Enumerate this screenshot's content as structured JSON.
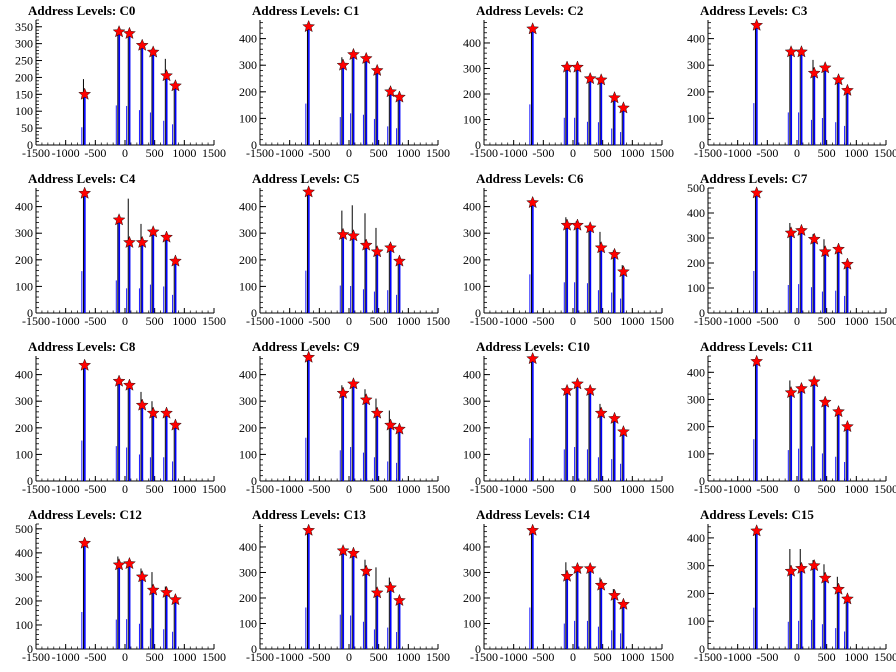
{
  "figure": {
    "rows": 4,
    "cols": 4,
    "colors": {
      "histogram_black": "#000000",
      "histogram_blue": "#0000ff",
      "marker_fill": "#ff0000",
      "marker_stroke": "#000000",
      "background": "#ffffff"
    },
    "marker_icon": "red-star-marker"
  },
  "chart_data": [
    {
      "type": "bar",
      "title": "Address Levels: C0",
      "xlim": [
        -1500,
        1500
      ],
      "ylim": [
        0,
        370
      ],
      "yticks": [
        0,
        50,
        100,
        150,
        200,
        250,
        300,
        350
      ],
      "xticks": [
        -1500,
        -1000,
        -500,
        0,
        500,
        1000,
        1500
      ],
      "xtick_labels": [
        "-1500",
        "-1000",
        "-500",
        "0",
        "500",
        "1000",
        "1500"
      ],
      "peaks": [
        {
          "x": -680,
          "y": 150,
          "black": 195
        },
        {
          "x": -100,
          "y": 335,
          "black": 340
        },
        {
          "x": 75,
          "y": 330,
          "black": 335
        },
        {
          "x": 290,
          "y": 295,
          "black": 305
        },
        {
          "x": 475,
          "y": 275,
          "black": 285
        },
        {
          "x": 700,
          "y": 205,
          "black": 255
        },
        {
          "x": 850,
          "y": 175,
          "black": 185
        }
      ]
    },
    {
      "type": "bar",
      "title": "Address Levels: C1",
      "xlim": [
        -1500,
        1500
      ],
      "ylim": [
        0,
        470
      ],
      "yticks": [
        0,
        100,
        200,
        300,
        400
      ],
      "xticks": [
        -1500,
        -1000,
        -500,
        0,
        500,
        1000,
        1500
      ],
      "xtick_labels": [
        "-1500",
        "-1000",
        "-500",
        "0",
        "500",
        "1000",
        "1500"
      ],
      "peaks": [
        {
          "x": -680,
          "y": 445,
          "black": 450
        },
        {
          "x": -100,
          "y": 300,
          "black": 330
        },
        {
          "x": 75,
          "y": 340,
          "black": 345
        },
        {
          "x": 290,
          "y": 325,
          "black": 335
        },
        {
          "x": 475,
          "y": 280,
          "black": 290
        },
        {
          "x": 700,
          "y": 200,
          "black": 215
        },
        {
          "x": 850,
          "y": 180,
          "black": 185
        }
      ]
    },
    {
      "type": "bar",
      "title": "Address Levels: C2",
      "xlim": [
        -1500,
        1500
      ],
      "ylim": [
        0,
        490
      ],
      "yticks": [
        0,
        100,
        200,
        300,
        400
      ],
      "xticks": [
        -1500,
        -1000,
        -500,
        0,
        500,
        1000,
        1500
      ],
      "xtick_labels": [
        "-1500",
        "-1000",
        "-500",
        "0",
        "500",
        "1000",
        "1500"
      ],
      "peaks": [
        {
          "x": -680,
          "y": 455,
          "black": 460
        },
        {
          "x": -100,
          "y": 305,
          "black": 310
        },
        {
          "x": 75,
          "y": 305,
          "black": 310
        },
        {
          "x": 290,
          "y": 260,
          "black": 270
        },
        {
          "x": 475,
          "y": 255,
          "black": 265
        },
        {
          "x": 700,
          "y": 185,
          "black": 195
        },
        {
          "x": 850,
          "y": 145,
          "black": 155
        }
      ]
    },
    {
      "type": "bar",
      "title": "Address Levels: C3",
      "xlim": [
        -1500,
        1500
      ],
      "ylim": [
        0,
        470
      ],
      "yticks": [
        0,
        100,
        200,
        300,
        400
      ],
      "xticks": [
        -1500,
        -1000,
        -500,
        0,
        500,
        1000,
        1500
      ],
      "xtick_labels": [
        "-1500",
        "-1000",
        "-500",
        "0",
        "500",
        "1000",
        "1500"
      ],
      "peaks": [
        {
          "x": -680,
          "y": 450,
          "black": 455
        },
        {
          "x": -100,
          "y": 350,
          "black": 355
        },
        {
          "x": 75,
          "y": 350,
          "black": 355
        },
        {
          "x": 290,
          "y": 270,
          "black": 320
        },
        {
          "x": 475,
          "y": 290,
          "black": 295
        },
        {
          "x": 700,
          "y": 245,
          "black": 255
        },
        {
          "x": 850,
          "y": 205,
          "black": 215
        }
      ]
    },
    {
      "type": "bar",
      "title": "Address Levels: C4",
      "xlim": [
        -1500,
        1500
      ],
      "ylim": [
        0,
        470
      ],
      "yticks": [
        0,
        100,
        200,
        300,
        400
      ],
      "xticks": [
        -1500,
        -1000,
        -500,
        0,
        500,
        1000,
        1500
      ],
      "xtick_labels": [
        "-1500",
        "-1000",
        "-500",
        "0",
        "500",
        "1000",
        "1500"
      ],
      "peaks": [
        {
          "x": -680,
          "y": 450,
          "black": 455
        },
        {
          "x": -100,
          "y": 350,
          "black": 355
        },
        {
          "x": 75,
          "y": 265,
          "black": 430
        },
        {
          "x": 290,
          "y": 265,
          "black": 335
        },
        {
          "x": 475,
          "y": 305,
          "black": 315
        },
        {
          "x": 700,
          "y": 285,
          "black": 290
        },
        {
          "x": 850,
          "y": 195,
          "black": 200
        }
      ]
    },
    {
      "type": "bar",
      "title": "Address Levels: C5",
      "xlim": [
        -1500,
        1500
      ],
      "ylim": [
        0,
        470
      ],
      "yticks": [
        0,
        100,
        200,
        300,
        400
      ],
      "xticks": [
        -1500,
        -1000,
        -500,
        0,
        500,
        1000,
        1500
      ],
      "xtick_labels": [
        "-1500",
        "-1000",
        "-500",
        "0",
        "500",
        "1000",
        "1500"
      ],
      "peaks": [
        {
          "x": -680,
          "y": 455,
          "black": 460
        },
        {
          "x": -100,
          "y": 295,
          "black": 385
        },
        {
          "x": 75,
          "y": 290,
          "black": 405
        },
        {
          "x": 290,
          "y": 255,
          "black": 375
        },
        {
          "x": 475,
          "y": 230,
          "black": 320
        },
        {
          "x": 700,
          "y": 245,
          "black": 260
        },
        {
          "x": 850,
          "y": 195,
          "black": 205
        }
      ]
    },
    {
      "type": "bar",
      "title": "Address Levels: C6",
      "xlim": [
        -1500,
        1500
      ],
      "ylim": [
        0,
        470
      ],
      "yticks": [
        0,
        100,
        200,
        300,
        400
      ],
      "xticks": [
        -1500,
        -1000,
        -500,
        0,
        500,
        1000,
        1500
      ],
      "xtick_labels": [
        "-1500",
        "-1000",
        "-500",
        "0",
        "500",
        "1000",
        "1500"
      ],
      "peaks": [
        {
          "x": -680,
          "y": 415,
          "black": 420
        },
        {
          "x": -100,
          "y": 330,
          "black": 360
        },
        {
          "x": 75,
          "y": 330,
          "black": 345
        },
        {
          "x": 290,
          "y": 320,
          "black": 330
        },
        {
          "x": 475,
          "y": 245,
          "black": 305
        },
        {
          "x": 700,
          "y": 220,
          "black": 235
        },
        {
          "x": 850,
          "y": 155,
          "black": 180
        }
      ]
    },
    {
      "type": "bar",
      "title": "Address Levels: C7",
      "xlim": [
        -1500,
        1500
      ],
      "ylim": [
        0,
        500
      ],
      "yticks": [
        0,
        100,
        200,
        300,
        400,
        500
      ],
      "xticks": [
        -1500,
        -1000,
        -500,
        0,
        500,
        1000,
        1500
      ],
      "xtick_labels": [
        "-1500",
        "-1000",
        "-500",
        "0",
        "500",
        "1000",
        "1500"
      ],
      "peaks": [
        {
          "x": -680,
          "y": 480,
          "black": 485
        },
        {
          "x": -100,
          "y": 320,
          "black": 360
        },
        {
          "x": 75,
          "y": 330,
          "black": 335
        },
        {
          "x": 290,
          "y": 295,
          "black": 315
        },
        {
          "x": 475,
          "y": 245,
          "black": 295
        },
        {
          "x": 700,
          "y": 255,
          "black": 260
        },
        {
          "x": 850,
          "y": 195,
          "black": 205
        }
      ]
    },
    {
      "type": "bar",
      "title": "Address Levels: C8",
      "xlim": [
        -1500,
        1500
      ],
      "ylim": [
        0,
        470
      ],
      "yticks": [
        0,
        100,
        200,
        300,
        400
      ],
      "xticks": [
        -1500,
        -1000,
        -500,
        0,
        500,
        1000,
        1500
      ],
      "xtick_labels": [
        "-1500",
        "-1000",
        "-500",
        "0",
        "500",
        "1000",
        "1500"
      ],
      "peaks": [
        {
          "x": -680,
          "y": 435,
          "black": 440
        },
        {
          "x": -100,
          "y": 375,
          "black": 385
        },
        {
          "x": 75,
          "y": 360,
          "black": 365
        },
        {
          "x": 290,
          "y": 285,
          "black": 335
        },
        {
          "x": 475,
          "y": 255,
          "black": 300
        },
        {
          "x": 700,
          "y": 255,
          "black": 260
        },
        {
          "x": 850,
          "y": 210,
          "black": 215
        }
      ]
    },
    {
      "type": "bar",
      "title": "Address Levels: C9",
      "xlim": [
        -1500,
        1500
      ],
      "ylim": [
        0,
        470
      ],
      "yticks": [
        0,
        100,
        200,
        300,
        400
      ],
      "xticks": [
        -1500,
        -1000,
        -500,
        0,
        500,
        1000,
        1500
      ],
      "xtick_labels": [
        "-1500",
        "-1000",
        "-500",
        "0",
        "500",
        "1000",
        "1500"
      ],
      "peaks": [
        {
          "x": -680,
          "y": 465,
          "black": 470
        },
        {
          "x": -100,
          "y": 330,
          "black": 360
        },
        {
          "x": 75,
          "y": 365,
          "black": 370
        },
        {
          "x": 290,
          "y": 305,
          "black": 345
        },
        {
          "x": 475,
          "y": 255,
          "black": 310
        },
        {
          "x": 700,
          "y": 210,
          "black": 265
        },
        {
          "x": 850,
          "y": 195,
          "black": 200
        }
      ]
    },
    {
      "type": "bar",
      "title": "Address Levels: C10",
      "xlim": [
        -1500,
        1500
      ],
      "ylim": [
        0,
        470
      ],
      "yticks": [
        0,
        100,
        200,
        300,
        400
      ],
      "xticks": [
        -1500,
        -1000,
        -500,
        0,
        500,
        1000,
        1500
      ],
      "xtick_labels": [
        "-1500",
        "-1000",
        "-500",
        "0",
        "500",
        "1000",
        "1500"
      ],
      "peaks": [
        {
          "x": -680,
          "y": 460,
          "black": 465
        },
        {
          "x": -100,
          "y": 340,
          "black": 350
        },
        {
          "x": 75,
          "y": 365,
          "black": 370
        },
        {
          "x": 290,
          "y": 340,
          "black": 345
        },
        {
          "x": 475,
          "y": 255,
          "black": 290
        },
        {
          "x": 700,
          "y": 235,
          "black": 240
        },
        {
          "x": 850,
          "y": 185,
          "black": 190
        }
      ]
    },
    {
      "type": "bar",
      "title": "Address Levels: C11",
      "xlim": [
        -1500,
        1500
      ],
      "ylim": [
        0,
        460
      ],
      "yticks": [
        0,
        100,
        200,
        300,
        400
      ],
      "xticks": [
        -1500,
        -1000,
        -500,
        0,
        500,
        1000,
        1500
      ],
      "xtick_labels": [
        "-1500",
        "-1000",
        "-500",
        "0",
        "500",
        "1000",
        "1500"
      ],
      "peaks": [
        {
          "x": -680,
          "y": 440,
          "black": 445
        },
        {
          "x": -100,
          "y": 325,
          "black": 370
        },
        {
          "x": 75,
          "y": 340,
          "black": 345
        },
        {
          "x": 290,
          "y": 365,
          "black": 370
        },
        {
          "x": 475,
          "y": 290,
          "black": 300
        },
        {
          "x": 700,
          "y": 255,
          "black": 265
        },
        {
          "x": 850,
          "y": 200,
          "black": 205
        }
      ]
    },
    {
      "type": "bar",
      "title": "Address Levels: C12",
      "xlim": [
        -1500,
        1500
      ],
      "ylim": [
        0,
        520
      ],
      "yticks": [
        0,
        100,
        200,
        300,
        400,
        500
      ],
      "xticks": [
        -1500,
        -1000,
        -500,
        0,
        500,
        1000,
        1500
      ],
      "xtick_labels": [
        "-1500",
        "-1000",
        "-500",
        "0",
        "500",
        "1000",
        "1500"
      ],
      "peaks": [
        {
          "x": -680,
          "y": 440,
          "black": 445
        },
        {
          "x": -100,
          "y": 350,
          "black": 385
        },
        {
          "x": 75,
          "y": 355,
          "black": 360
        },
        {
          "x": 290,
          "y": 300,
          "black": 335
        },
        {
          "x": 475,
          "y": 245,
          "black": 320
        },
        {
          "x": 700,
          "y": 235,
          "black": 260
        },
        {
          "x": 850,
          "y": 205,
          "black": 215
        }
      ]
    },
    {
      "type": "bar",
      "title": "Address Levels: C13",
      "xlim": [
        -1500,
        1500
      ],
      "ylim": [
        0,
        490
      ],
      "yticks": [
        0,
        100,
        200,
        300,
        400
      ],
      "xticks": [
        -1500,
        -1000,
        -500,
        0,
        500,
        1000,
        1500
      ],
      "xtick_labels": [
        "-1500",
        "-1000",
        "-500",
        "0",
        "500",
        "1000",
        "1500"
      ],
      "peaks": [
        {
          "x": -680,
          "y": 465,
          "black": 470
        },
        {
          "x": -100,
          "y": 385,
          "black": 390
        },
        {
          "x": 75,
          "y": 375,
          "black": 380
        },
        {
          "x": 290,
          "y": 305,
          "black": 350
        },
        {
          "x": 475,
          "y": 220,
          "black": 320
        },
        {
          "x": 700,
          "y": 240,
          "black": 280
        },
        {
          "x": 850,
          "y": 190,
          "black": 200
        }
      ]
    },
    {
      "type": "bar",
      "title": "Address Levels: C14",
      "xlim": [
        -1500,
        1500
      ],
      "ylim": [
        0,
        490
      ],
      "yticks": [
        0,
        100,
        200,
        300,
        400
      ],
      "xticks": [
        -1500,
        -1000,
        -500,
        0,
        500,
        1000,
        1500
      ],
      "xtick_labels": [
        "-1500",
        "-1000",
        "-500",
        "0",
        "500",
        "1000",
        "1500"
      ],
      "peaks": [
        {
          "x": -680,
          "y": 465,
          "black": 470
        },
        {
          "x": -100,
          "y": 285,
          "black": 340
        },
        {
          "x": 75,
          "y": 315,
          "black": 320
        },
        {
          "x": 290,
          "y": 315,
          "black": 320
        },
        {
          "x": 475,
          "y": 250,
          "black": 280
        },
        {
          "x": 700,
          "y": 210,
          "black": 235
        },
        {
          "x": 850,
          "y": 175,
          "black": 185
        }
      ]
    },
    {
      "type": "bar",
      "title": "Address Levels: C15",
      "xlim": [
        -1500,
        1500
      ],
      "ylim": [
        0,
        450
      ],
      "yticks": [
        0,
        100,
        200,
        300,
        400
      ],
      "xticks": [
        -1500,
        -1000,
        -500,
        0,
        500,
        1000,
        1500
      ],
      "xtick_labels": [
        "-1500",
        "-1000",
        "-500",
        "0",
        "500",
        "1000",
        "1500"
      ],
      "peaks": [
        {
          "x": -680,
          "y": 425,
          "black": 430
        },
        {
          "x": -100,
          "y": 280,
          "black": 360
        },
        {
          "x": 75,
          "y": 290,
          "black": 360
        },
        {
          "x": 290,
          "y": 300,
          "black": 320
        },
        {
          "x": 475,
          "y": 255,
          "black": 305
        },
        {
          "x": 700,
          "y": 215,
          "black": 260
        },
        {
          "x": 850,
          "y": 180,
          "black": 190
        }
      ]
    }
  ]
}
